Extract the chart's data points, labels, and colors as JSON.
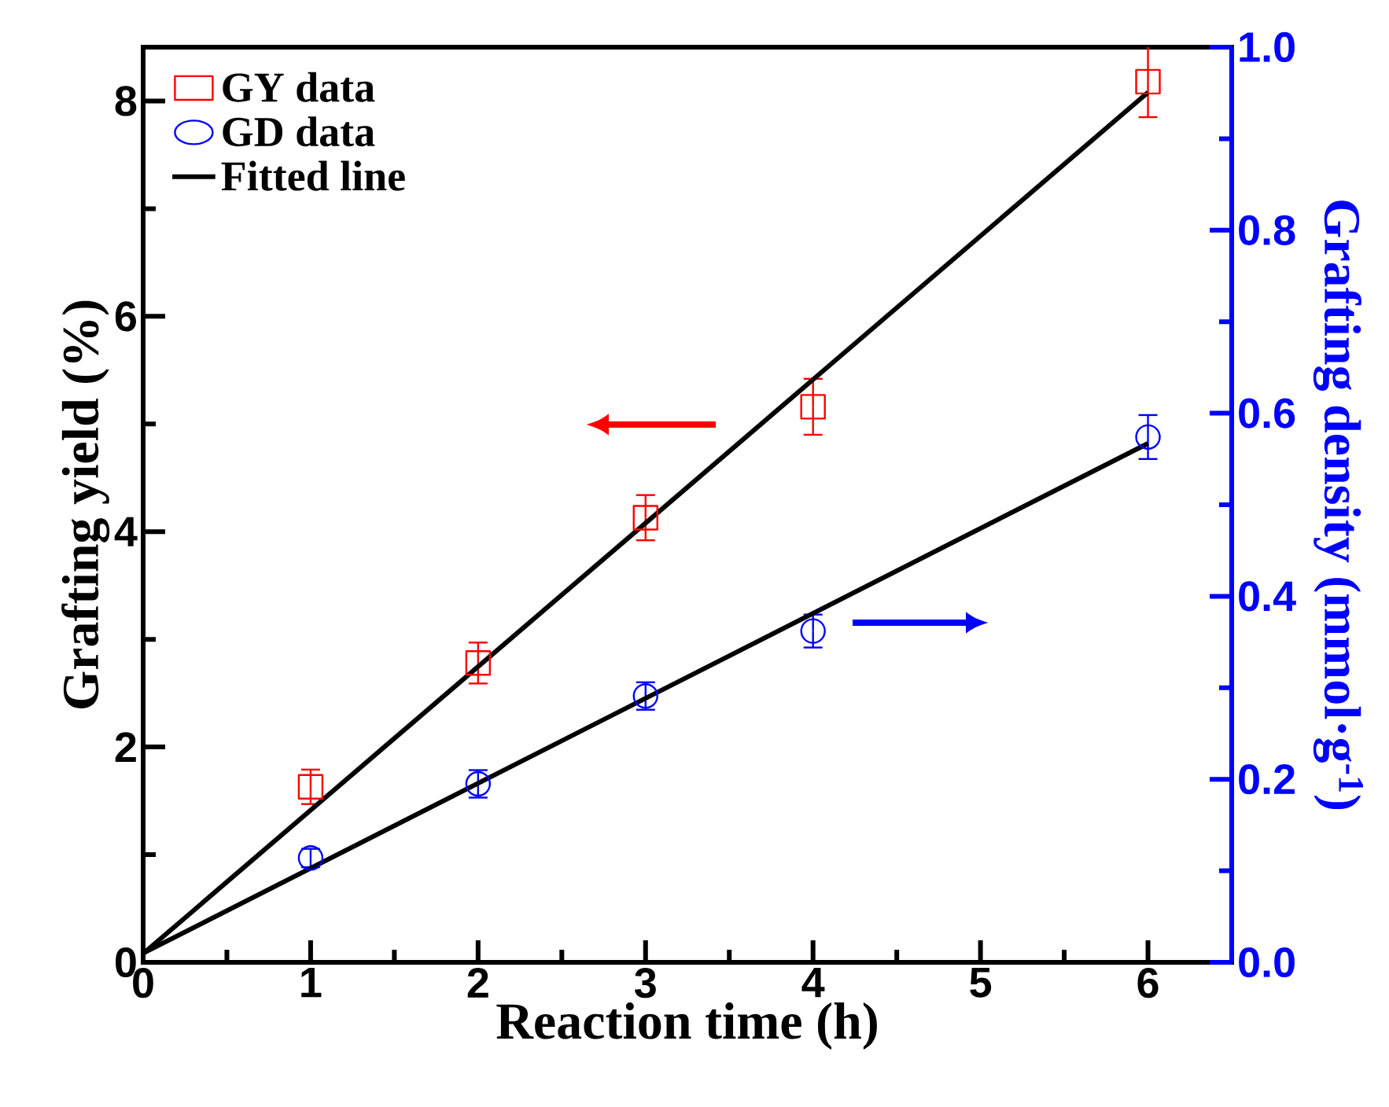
{
  "chart_data": {
    "type": "scatter",
    "xlabel": "Reaction time (h)",
    "ylabel": "Grafting yield (%)",
    "y2label": "Grafting density (mmol·g$^{-1}$)",
    "xlim": [
      0,
      6.5
    ],
    "xticks": [
      0,
      1,
      2,
      3,
      4,
      5,
      6
    ],
    "ylim": [
      0,
      8.5
    ],
    "yticks": [
      0,
      2,
      4,
      6,
      8
    ],
    "y2lim": [
      0,
      1.0
    ],
    "y2ticks": [
      {
        "value": 0,
        "label": "0.0"
      },
      {
        "value": 0.2,
        "label": "0.2"
      },
      {
        "value": 0.4,
        "label": "0.4"
      },
      {
        "value": 0.6,
        "label": "0.6"
      },
      {
        "value": 0.8,
        "label": "0.8"
      },
      {
        "value": 1.0,
        "label": "1.0"
      }
    ],
    "legend": "top left",
    "grid": false,
    "series": [
      {
        "name": "GY data",
        "marker": "square",
        "color": "#ff0000",
        "x": [
          1,
          2,
          3,
          4,
          6
        ],
        "values": [
          1.63,
          2.78,
          4.13,
          5.16,
          8.18
        ],
        "errors": [
          0.16,
          0.19,
          0.21,
          0.26,
          0.33
        ]
      },
      {
        "name": "GD data",
        "marker": "circle",
        "color": "#0000ff",
        "axis": "y2",
        "x": [
          1,
          2,
          3,
          4,
          6
        ],
        "values": [
          0.114,
          0.195,
          0.291,
          0.362,
          0.574
        ],
        "errors": [
          0.01,
          0.015,
          0.015,
          0.018,
          0.024
        ]
      },
      {
        "name": "Fitted line",
        "type": "line",
        "marker": "none",
        "color": "#000000",
        "x": [
          0,
          6
        ],
        "values": [
          0.08,
          8.08
        ]
      },
      {
        "type": "line",
        "marker": "none",
        "color": "#000000",
        "axis": "y2",
        "x": [
          0,
          6
        ],
        "values": [
          0.01,
          0.567
        ]
      }
    ]
  }
}
